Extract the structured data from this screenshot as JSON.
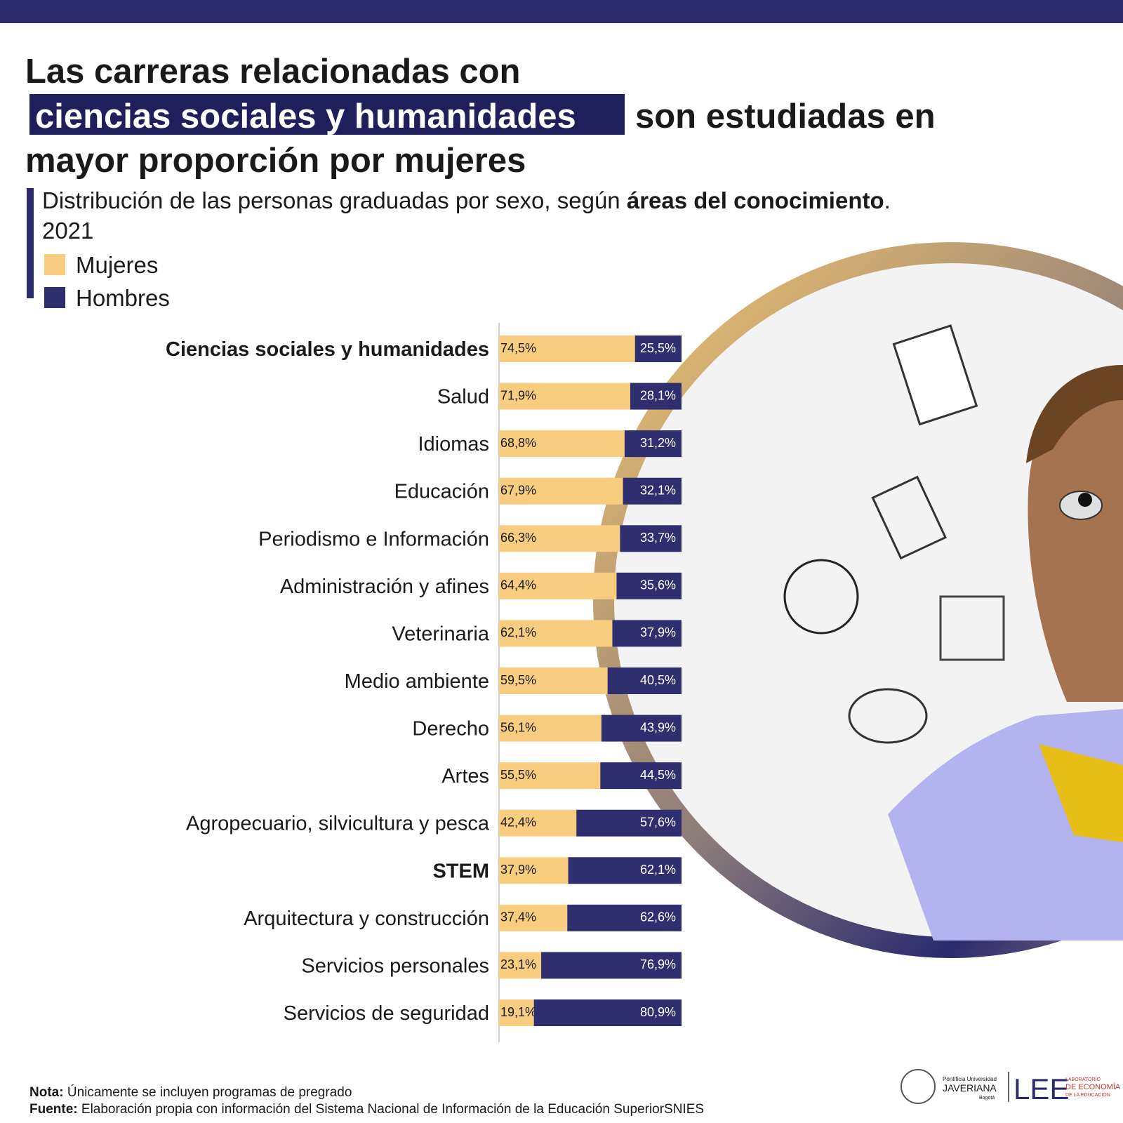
{
  "chart_data": {
    "type": "stacked-bar-horizontal",
    "title_parts": [
      "Las carreras relacionadas con",
      "ciencias sociales y humanidades",
      "son estudiadas en",
      "mayor proporción por mujeres"
    ],
    "subtitle_parts": [
      "Distribución de las personas graduadas por sexo, según",
      "áreas del conocimiento",
      ".",
      "2021"
    ],
    "categories": [
      "Ciencias sociales y humanidades",
      "Salud",
      "Idiomas",
      "Educación",
      "Periodismo e Información",
      "Administración y afines",
      "Veterinaria",
      "Medio ambiente",
      "Derecho",
      "Artes",
      "Agropecuario, silvicultura y pesca",
      "STEM",
      "Arquitectura y construcción",
      "Servicios personales",
      "Servicios de seguridad"
    ],
    "bold_categories": [
      0,
      11
    ],
    "series": [
      {
        "name": "Mujeres",
        "color": "#f9cd80",
        "values": [
          74.5,
          71.9,
          68.8,
          67.9,
          66.3,
          64.4,
          62.1,
          59.5,
          56.1,
          55.5,
          42.4,
          37.9,
          37.4,
          23.1,
          19.1
        ],
        "value_labels": [
          "74,5%",
          "71,9%",
          "68,8%",
          "67,9%",
          "66,3%",
          "64,4%",
          "62,1%",
          "59,5%",
          "56,1%",
          "55,5%",
          "42,4%",
          "37,9%",
          "37,4%",
          "23,1%",
          "19,1%"
        ]
      },
      {
        "name": "Hombres",
        "color": "#2f2f6f",
        "values": [
          25.5,
          28.1,
          31.2,
          32.1,
          33.7,
          35.6,
          37.9,
          40.5,
          43.9,
          44.5,
          57.6,
          62.1,
          62.6,
          76.9,
          80.9
        ],
        "value_labels": [
          "25,5%",
          "28,1%",
          "31,2%",
          "32,1%",
          "33,7%",
          "35,6%",
          "37,9%",
          "40,5%",
          "43,9%",
          "44,5%",
          "57,6%",
          "62,1%",
          "62,6%",
          "76,9%",
          "80,9%"
        ]
      }
    ]
  },
  "footer": {
    "note_label": "Nota:",
    "note": "Únicamente se incluyen programas de pregrado",
    "source_label": "Fuente:",
    "source": "Elaboración propia con información del Sistema Nacional de Información de la Educación SuperiorSNIES",
    "logo_university": [
      "Pontificia Universidad",
      "JAVERIANA",
      "Bogotá"
    ],
    "logo_lab": [
      "LEE",
      "LABORATORIO",
      "DE ECONOMÍA",
      "DE LA EDUCACIÓN"
    ]
  }
}
